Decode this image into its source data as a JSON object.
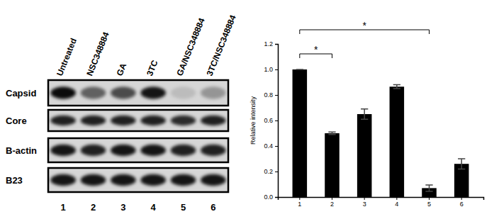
{
  "blot": {
    "lanes": [
      "Untreated",
      "NSC348884",
      "GA",
      "3TC",
      "GA/NSC348884",
      "3TC/NSC348884"
    ],
    "lane_numbers": [
      "1",
      "2",
      "3",
      "4",
      "5",
      "6"
    ],
    "rows": [
      {
        "label": "Capsid",
        "bands": [
          0.95,
          0.55,
          0.65,
          0.9,
          0.12,
          0.3
        ]
      },
      {
        "label": "Core",
        "bands": [
          0.85,
          0.85,
          0.85,
          0.85,
          0.8,
          0.85
        ]
      },
      {
        "label": "B-actin",
        "bands": [
          0.9,
          0.85,
          0.9,
          0.9,
          0.85,
          0.85
        ]
      },
      {
        "label": "B23",
        "bands": [
          0.9,
          0.9,
          0.9,
          0.9,
          0.9,
          0.9
        ]
      }
    ]
  },
  "chart_data": {
    "type": "bar",
    "categories": [
      "1",
      "2",
      "3",
      "4",
      "5",
      "6"
    ],
    "values": [
      1.0,
      0.5,
      0.65,
      0.865,
      0.07,
      0.26
    ],
    "errors": [
      0.0,
      0.01,
      0.04,
      0.015,
      0.025,
      0.04
    ],
    "color": "#000000",
    "ylabel": "Relative intensity",
    "ylim": [
      0,
      1.2
    ],
    "yticks": [
      {
        "value": 0,
        "label": "0.0"
      },
      {
        "value": 0.2,
        "label": "0.2"
      },
      {
        "value": 0.4,
        "label": "0.4"
      },
      {
        "value": 0.6,
        "label": "0.6"
      },
      {
        "value": 0.8,
        "label": "0.8"
      },
      {
        "value": 1,
        "label": "1.0"
      },
      {
        "value": 1.2,
        "label": "1.2"
      }
    ],
    "annotations": [
      {
        "text": "*",
        "between": [
          "1",
          "2"
        ]
      },
      {
        "text": "*",
        "between": [
          "1",
          "5"
        ]
      }
    ]
  }
}
